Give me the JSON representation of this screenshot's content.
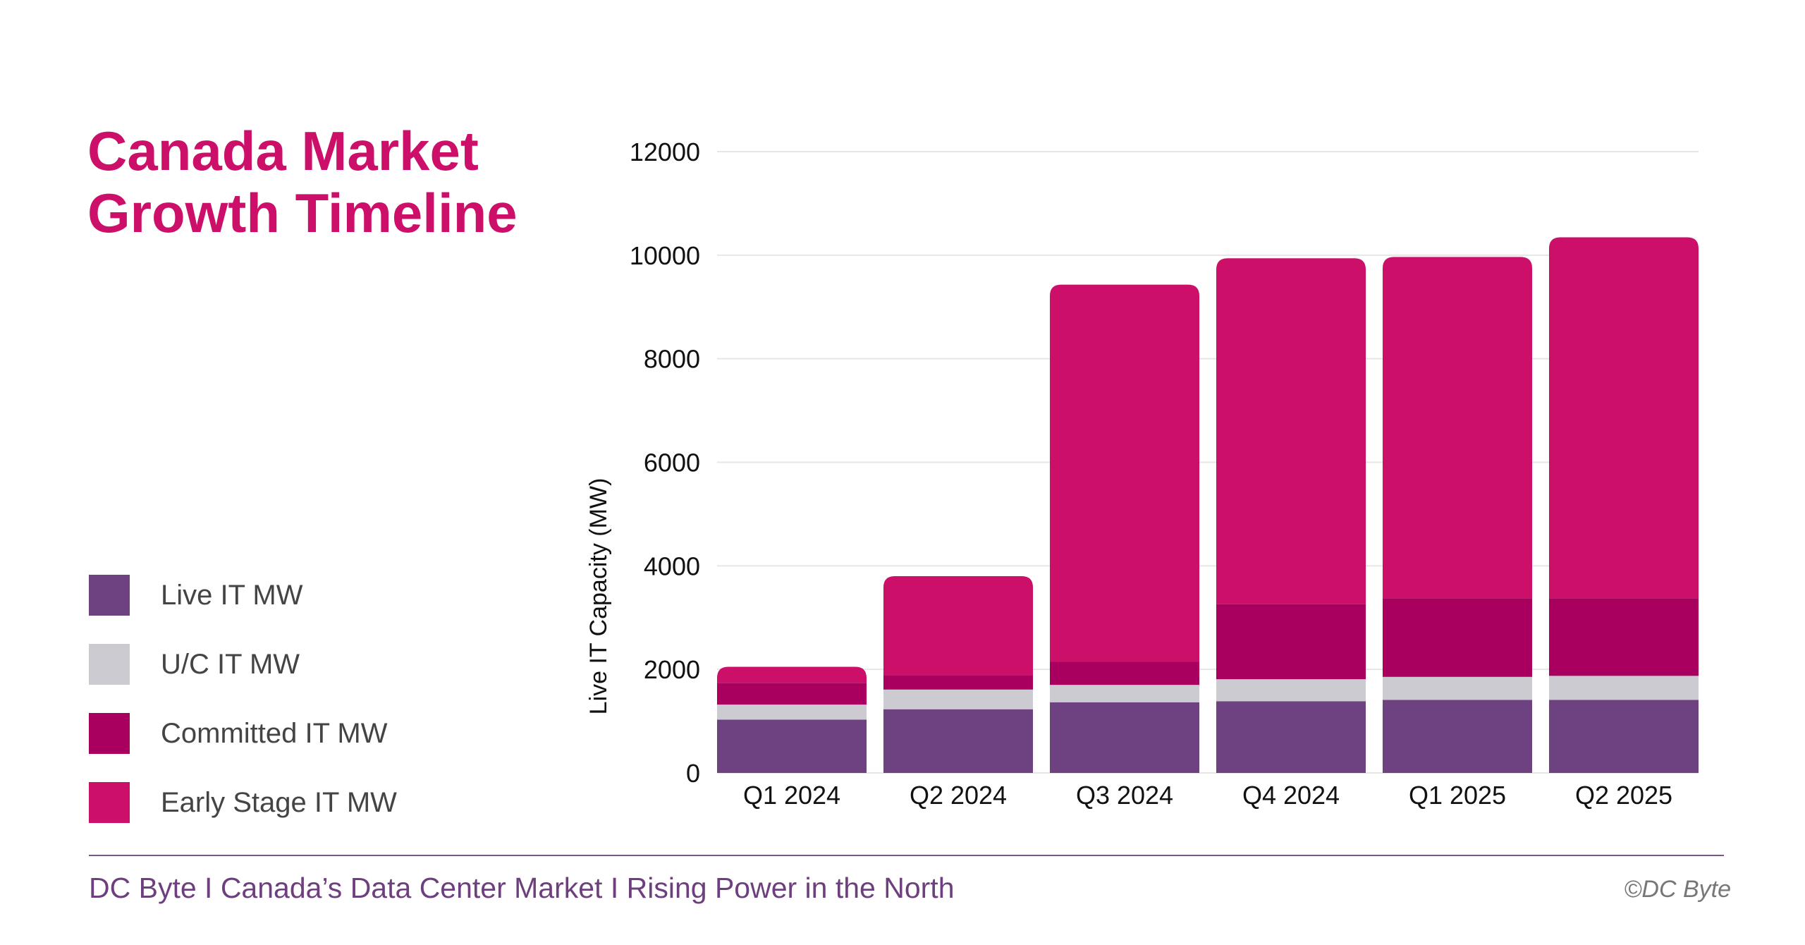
{
  "title": "Canada Market\nGrowth Timeline",
  "footer": {
    "text": "DC Byte I  Canada’s Data Center Market I Rising Power in the North",
    "copyright": "©DC Byte"
  },
  "chart_data": {
    "type": "bar",
    "stacked": true,
    "title": "Canada Market Growth Timeline",
    "xlabel": "",
    "ylabel": "Live IT Capacity (MW)",
    "ylim": [
      0,
      12000
    ],
    "yticks": [
      0,
      2000,
      4000,
      6000,
      8000,
      10000,
      12000
    ],
    "grid": true,
    "legend_placement": "left",
    "categories": [
      "Q1 2024",
      "Q2 2024",
      "Q3 2024",
      "Q4 2024",
      "Q1 2025",
      "Q2 2025"
    ],
    "series": [
      {
        "name": "Live IT MW",
        "color": "#6e4180",
        "values": [
          1030,
          1230,
          1365,
          1385,
          1410,
          1410
        ]
      },
      {
        "name": "U/C IT MW",
        "color": "#cdcbd2",
        "values": [
          290,
          380,
          335,
          425,
          445,
          465
        ]
      },
      {
        "name": "Committed IT MW",
        "color": "#a9005f",
        "values": [
          420,
          270,
          445,
          1450,
          1520,
          1500
        ]
      },
      {
        "name": "Early Stage IT MW",
        "color": "#cc0f69",
        "values": [
          310,
          1920,
          7285,
          6680,
          6590,
          6970
        ]
      }
    ]
  }
}
